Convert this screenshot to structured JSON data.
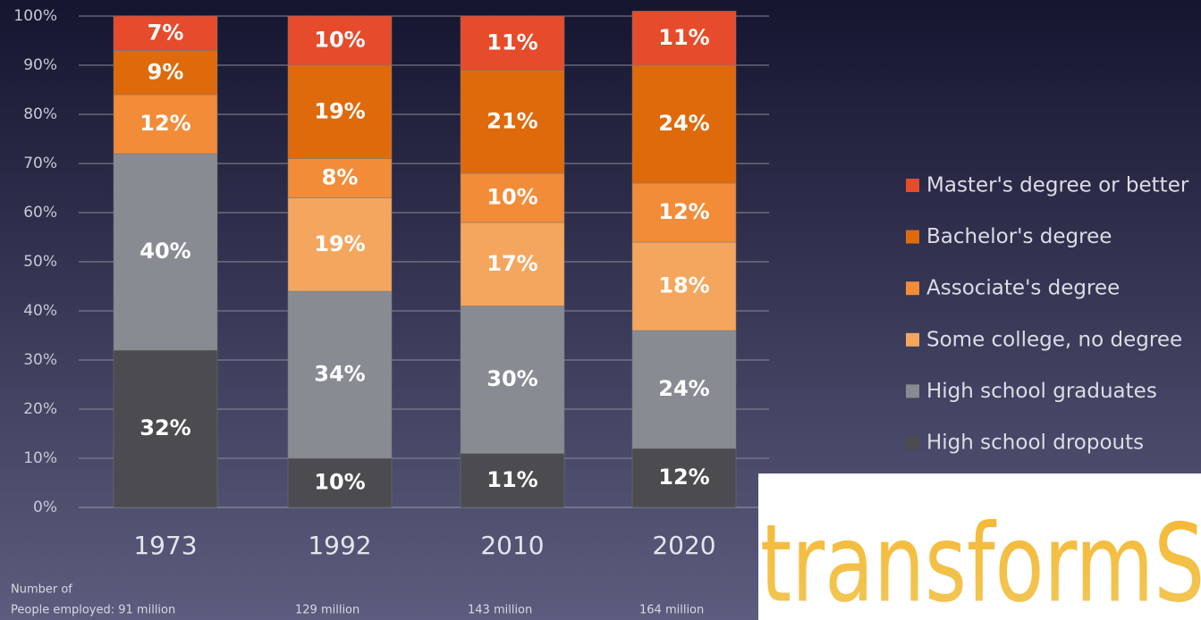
{
  "chart_data": {
    "type": "stacked_bar",
    "categories": [
      "1973",
      "1992",
      "2010",
      "2020"
    ],
    "series": [
      {
        "name": "High school dropouts",
        "color": "#4b4b50",
        "values": [
          32,
          10,
          11,
          12
        ],
        "value_labels": [
          "32%",
          "10%",
          "11%",
          "12%"
        ]
      },
      {
        "name": "High school graduates",
        "color": "#888c92",
        "values": [
          40,
          34,
          30,
          24
        ],
        "value_labels": [
          "40%",
          "34%",
          "30%",
          "24%"
        ]
      },
      {
        "name": "Some college, no degree",
        "color": "#f5a65e",
        "values": [
          null,
          19,
          17,
          18
        ],
        "value_labels": [
          null,
          "19%",
          "17%",
          "18%"
        ]
      },
      {
        "name": "Associate's degree",
        "color": "#f28c38",
        "values": [
          12,
          8,
          10,
          12
        ],
        "value_labels": [
          "12%",
          "8%",
          "10%",
          "12%"
        ]
      },
      {
        "name": "Bachelor's degree",
        "color": "#df6a0c",
        "values": [
          9,
          19,
          21,
          24
        ],
        "value_labels": [
          "9%",
          "19%",
          "21%",
          "24%"
        ]
      },
      {
        "name": "Master's degree or better",
        "color": "#e64b2b",
        "values": [
          7,
          10,
          11,
          11
        ],
        "value_labels": [
          "7%",
          "10%",
          "11%",
          "11%"
        ]
      }
    ],
    "ylim": [
      0,
      100
    ],
    "yticks": [
      {
        "value": 0,
        "label": "0%"
      },
      {
        "value": 10,
        "label": "10%"
      },
      {
        "value": 20,
        "label": "20%"
      },
      {
        "value": 30,
        "label": "30%"
      },
      {
        "value": 40,
        "label": "40%"
      },
      {
        "value": 50,
        "label": "50%"
      },
      {
        "value": 60,
        "label": "60%"
      },
      {
        "value": 70,
        "label": "70%"
      },
      {
        "value": 80,
        "label": "80%"
      },
      {
        "value": 90,
        "label": "90%"
      },
      {
        "value": 100,
        "label": "100%"
      }
    ],
    "grid": true,
    "footnote_label": "Number of",
    "employed": [
      "People employed:  91 million",
      "129 million",
      "143 million",
      "164 million"
    ],
    "logo": "transformSC"
  }
}
